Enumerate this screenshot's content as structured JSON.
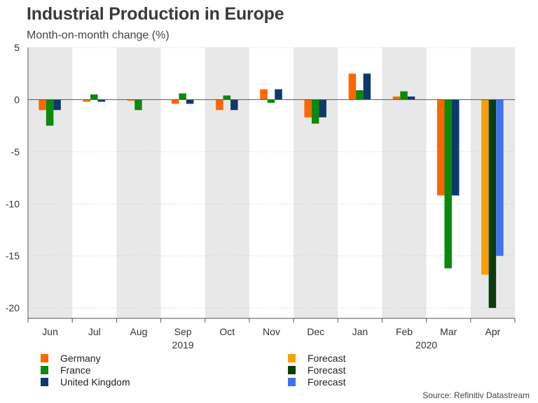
{
  "title": "Industrial Production in Europe",
  "subtitle": "Month-on-month change (%)",
  "source": "Source: Refinitiv Datastream",
  "colors": {
    "germany": "#ff6600",
    "france": "#0a8a0a",
    "uk": "#0d3a6b",
    "germany_forecast": "#f5a000",
    "france_forecast": "#0b3d0b",
    "uk_forecast": "#3d73f0",
    "band": "#e8e8e8",
    "grid": "#cccccc",
    "axis": "#555555"
  },
  "legend": {
    "left": [
      {
        "label": "Germany",
        "color_key": "germany"
      },
      {
        "label": "France",
        "color_key": "france"
      },
      {
        "label": "United Kingdom",
        "color_key": "uk"
      }
    ],
    "right": [
      {
        "label": "Forecast",
        "color_key": "germany_forecast"
      },
      {
        "label": "Forecast",
        "color_key": "france_forecast"
      },
      {
        "label": "Forecast",
        "color_key": "uk_forecast"
      }
    ]
  },
  "chart_data": {
    "type": "bar",
    "title": "Industrial Production in Europe",
    "ylabel": "Month-on-month change (%)",
    "categories": [
      "Jun",
      "Jul",
      "Aug",
      "Sep",
      "Oct",
      "Nov",
      "Dec",
      "Jan",
      "Feb",
      "Mar",
      "Apr"
    ],
    "year_labels": [
      {
        "label": "2019",
        "category_index": 3
      },
      {
        "label": "2020",
        "category_index": 8.5
      }
    ],
    "ylim": [
      -21,
      5
    ],
    "yticks": [
      5,
      0,
      -5,
      -10,
      -15,
      -20
    ],
    "series": [
      {
        "name": "Germany",
        "color_key": "germany",
        "values": [
          -1.0,
          -0.2,
          -0.1,
          -0.4,
          -1.0,
          1.0,
          -1.7,
          2.5,
          0.3,
          -9.2,
          -16.8
        ],
        "forecast_from_index": 10,
        "forecast_color_key": "germany_forecast"
      },
      {
        "name": "France",
        "color_key": "france",
        "values": [
          -2.5,
          0.5,
          -1.0,
          0.6,
          0.4,
          -0.3,
          -2.3,
          0.9,
          0.8,
          -16.2,
          -20.0
        ],
        "forecast_from_index": 10,
        "forecast_color_key": "france_forecast"
      },
      {
        "name": "United Kingdom",
        "color_key": "uk",
        "values": [
          -1.0,
          -0.2,
          0.0,
          -0.4,
          -1.0,
          1.0,
          -1.7,
          2.5,
          0.3,
          -9.2,
          -15.0
        ],
        "forecast_from_index": 10,
        "forecast_color_key": "uk_forecast"
      }
    ],
    "shaded_categories": [
      0,
      2,
      4,
      6,
      8,
      10
    ]
  }
}
